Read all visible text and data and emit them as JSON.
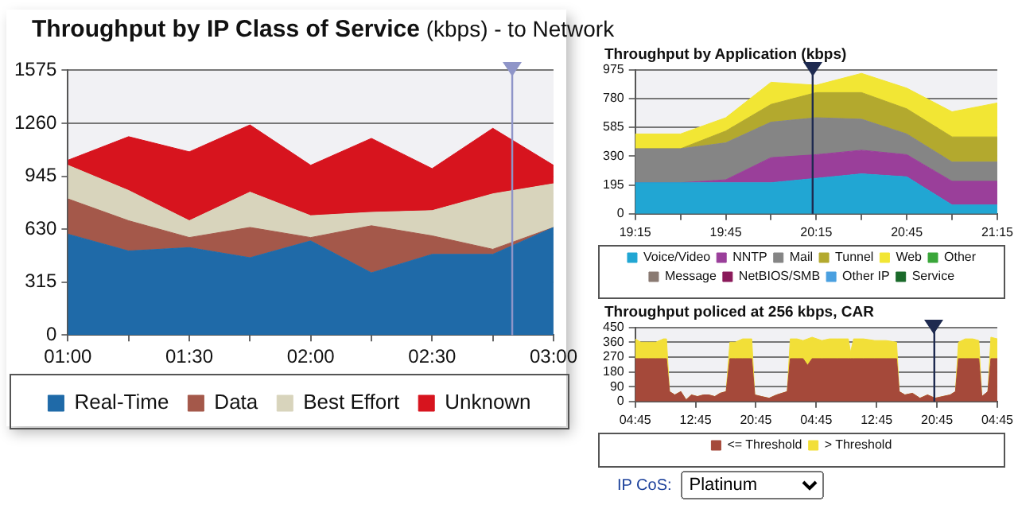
{
  "chart_data": [
    {
      "type": "area",
      "title": "Throughput by IP Class of Service",
      "subtitle": "(kbps)  - to Network",
      "x": [
        1,
        1.25,
        1.5,
        1.75,
        2,
        2.25,
        2.5,
        2.75,
        3
      ],
      "xlim": [
        1,
        3
      ],
      "xticks": [
        {
          "value": 1,
          "label": "01:00"
        },
        {
          "value": 1.25,
          "label": null
        },
        {
          "value": 1.5,
          "label": "01:30"
        },
        {
          "value": 1.75,
          "label": null
        },
        {
          "value": 2,
          "label": "02:00"
        },
        {
          "value": 2.25,
          "label": null
        },
        {
          "value": 2.5,
          "label": "02:30"
        },
        {
          "value": 2.75,
          "label": null
        },
        {
          "value": 3,
          "label": "03:00"
        }
      ],
      "ylim": [
        0,
        1575
      ],
      "yticks": [
        0,
        315,
        630,
        945,
        1260,
        1575
      ],
      "stacked": true,
      "grid": "y",
      "legend": "bottom",
      "marker": "none",
      "ref_lines": [
        {
          "axis": "x",
          "value": 2.83,
          "color": "#8f95c8"
        }
      ],
      "series": [
        {
          "name": "Real-Time",
          "color": "#1f6aa8",
          "values": [
            600,
            500,
            520,
            460,
            560,
            370,
            480,
            480,
            640
          ]
        },
        {
          "name": "Data",
          "color": "#a4584a",
          "values": [
            210,
            180,
            60,
            180,
            20,
            280,
            110,
            30,
            0
          ]
        },
        {
          "name": "Best Effort",
          "color": "#d8d4bc",
          "values": [
            200,
            180,
            100,
            210,
            130,
            80,
            150,
            330,
            260
          ]
        },
        {
          "name": "Unknown",
          "color": "#d7141e",
          "values": [
            30,
            320,
            410,
            400,
            300,
            440,
            250,
            390,
            110
          ]
        }
      ]
    },
    {
      "type": "area",
      "title": "Throughput by Application (kbps)",
      "x": [
        19.25,
        19.5,
        19.75,
        20,
        20.25,
        20.5,
        20.75,
        21,
        21.25
      ],
      "xlim": [
        19.25,
        21.25
      ],
      "xticks": [
        {
          "value": 19.25,
          "label": "19:15"
        },
        {
          "value": 19.5,
          "label": null
        },
        {
          "value": 19.75,
          "label": "19:45"
        },
        {
          "value": 20,
          "label": null
        },
        {
          "value": 20.25,
          "label": "20:15"
        },
        {
          "value": 20.5,
          "label": null
        },
        {
          "value": 20.75,
          "label": "20:45"
        },
        {
          "value": 21,
          "label": null
        },
        {
          "value": 21.25,
          "label": "21:15"
        }
      ],
      "ylim": [
        0,
        975
      ],
      "yticks": [
        0,
        195,
        390,
        585,
        780,
        975
      ],
      "stacked": true,
      "grid": "y",
      "legend": "bottom",
      "marker": "none",
      "ref_lines": [
        {
          "axis": "x",
          "value": 20.23,
          "color": "#1e2a50"
        }
      ],
      "series": [
        {
          "name": "Voice/Video",
          "color": "#21a6d3",
          "values": [
            210,
            210,
            210,
            210,
            240,
            270,
            250,
            60,
            60
          ]
        },
        {
          "name": "NNTP",
          "color": "#9a3f9a",
          "values": [
            0,
            0,
            20,
            170,
            160,
            160,
            150,
            160,
            160
          ]
        },
        {
          "name": "Mail",
          "color": "#858585",
          "values": [
            230,
            230,
            250,
            240,
            250,
            210,
            140,
            130,
            130
          ]
        },
        {
          "name": "Tunnel",
          "color": "#b3a92e",
          "values": [
            0,
            0,
            80,
            120,
            170,
            180,
            170,
            170,
            170
          ]
        },
        {
          "name": "Web",
          "color": "#f2e634",
          "values": [
            100,
            100,
            90,
            150,
            50,
            130,
            140,
            170,
            230
          ]
        },
        {
          "name": "Other",
          "color": "#3aa63a",
          "values": [
            null,
            null,
            null,
            null,
            null,
            null,
            null,
            null,
            null
          ]
        },
        {
          "name": "Message",
          "color": "#8a7a72",
          "values": [
            null,
            null,
            null,
            null,
            null,
            null,
            null,
            null,
            null
          ]
        },
        {
          "name": "NetBIOS/SMB",
          "color": "#8a1a5a",
          "values": [
            null,
            null,
            null,
            null,
            null,
            null,
            null,
            null,
            null
          ]
        },
        {
          "color": "#b8b8b8",
          "values": [
            null,
            null,
            null,
            null,
            null,
            null,
            null,
            null,
            null
          ]
        },
        {
          "name": "Other IP",
          "color": "#4aa0e0",
          "values": [
            null,
            null,
            null,
            null,
            null,
            null,
            null,
            null,
            null
          ]
        },
        {
          "name": "Service",
          "color": "#1a6a2a",
          "values": [
            null,
            null,
            null,
            null,
            null,
            null,
            null,
            null,
            null
          ]
        }
      ]
    },
    {
      "type": "area",
      "title": "Throughput policed at 256 kbps, CAR",
      "x": [
        "--01-01T04:45",
        "--01-01T05:30",
        "--01-01T06:30",
        "--01-01T07:30",
        "--01-01T08:30",
        "--01-01T08:54",
        "--01-01T09:18",
        "--01-01T10:00",
        "--01-01T10:48",
        "--01-01T11:30",
        "--01-01T12:12",
        "--01-01T13:00",
        "--01-01T13:48",
        "--01-01T14:30",
        "--01-01T15:18",
        "--01-01T16:00",
        "--01-01T16:48",
        "--01-01T17:18",
        "--01-01T18:00",
        "--01-01T19:00",
        "--01-01T20:12",
        "--01-01T20:36",
        "--01-01T21:30",
        "--01-01T22:30",
        "--01-01T23:30",
        "--01-02T00:54",
        "--01-02T01:18",
        "--01-02T02:12",
        "--01-02T03:00",
        "--01-02T03:36",
        "--01-02T04:12",
        "--01-02T05:30",
        "--01-02T06:30",
        "--01-02T07:30",
        "--01-02T09:00",
        "--01-02T09:18",
        "--01-02T09:42",
        "--01-02T11:00",
        "--01-02T12:30",
        "--01-02T14:00",
        "--01-02T15:24",
        "--01-02T15:45",
        "--01-02T16:30",
        "--01-02T17:30",
        "--01-02T18:30",
        "--01-02T19:30",
        "--01-02T20:30",
        "--01-02T21:30",
        "--01-02T22:30",
        "--01-02T23:12",
        "--01-02T23:36",
        "--01-03T00:30",
        "--01-03T01:30",
        "--01-03T02:18",
        "--01-03T02:42",
        "--01-03T03:30",
        "--01-03T03:54",
        "--01-03T04:45"
      ],
      "xlim": [
        "--01-01T04:45",
        "--01-03T04:45"
      ],
      "xticks": [
        {
          "value": "--01-01T04:45",
          "label": "04:45"
        },
        {
          "value": "--01-01T12:45",
          "label": "12:45"
        },
        {
          "value": "--01-01T20:45",
          "label": "20:45"
        },
        {
          "value": "--01-02T04:45",
          "label": "04:45"
        },
        {
          "value": "--01-02T12:45",
          "label": "12:45"
        },
        {
          "value": "--01-02T20:45",
          "label": "20:45"
        },
        {
          "value": "--01-03T04:45",
          "label": "04:45"
        }
      ],
      "ylim": [
        0,
        450
      ],
      "yticks": [
        0,
        90,
        180,
        270,
        360,
        450
      ],
      "stacked": true,
      "grid": "y",
      "legend": "bottom",
      "marker": "none",
      "ref_lines": [
        {
          "axis": "x",
          "value": "--01-02T20:24",
          "color": "#1e2a50"
        }
      ],
      "series": [
        {
          "name": "<= Threshold",
          "color": "#a5493a",
          "values": [
            260,
            260,
            260,
            260,
            260,
            260,
            60,
            40,
            60,
            10,
            40,
            30,
            40,
            40,
            30,
            50,
            60,
            260,
            260,
            260,
            260,
            40,
            30,
            20,
            40,
            60,
            260,
            260,
            260,
            220,
            260,
            260,
            260,
            260,
            260,
            260,
            260,
            260,
            260,
            260,
            260,
            60,
            40,
            50,
            20,
            40,
            20,
            30,
            40,
            60,
            260,
            260,
            260,
            260,
            30,
            60,
            260,
            260
          ]
        },
        {
          "name": "> Threshold",
          "color": "#f2df38",
          "values": [
            120,
            100,
            100,
            100,
            120,
            120,
            0,
            0,
            0,
            0,
            0,
            0,
            0,
            0,
            0,
            0,
            0,
            100,
            100,
            120,
            120,
            0,
            0,
            0,
            0,
            0,
            120,
            120,
            110,
            160,
            130,
            110,
            120,
            120,
            120,
            40,
            120,
            120,
            110,
            110,
            100,
            0,
            0,
            0,
            0,
            0,
            0,
            0,
            0,
            0,
            100,
            120,
            120,
            110,
            0,
            0,
            130,
            120
          ]
        }
      ]
    },
    {
      "type": "other",
      "annotations": [
        "IP CoS:",
        "Platinum"
      ]
    }
  ]
}
